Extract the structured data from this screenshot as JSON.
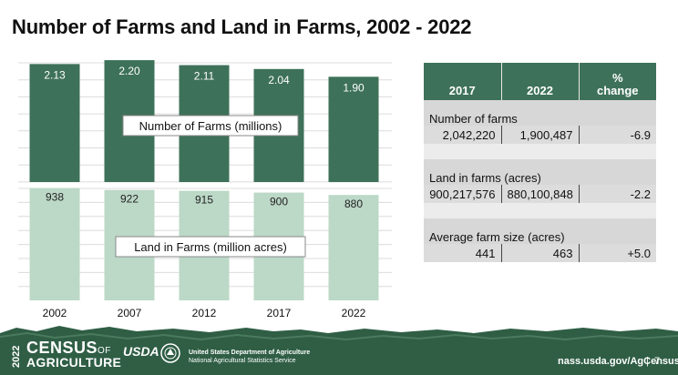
{
  "title": "Number of Farms and Land in Farms, 2002 - 2022",
  "chart_data": [
    {
      "type": "bar",
      "categories": [
        "2002",
        "2007",
        "2012",
        "2017",
        "2022"
      ],
      "values": [
        2.13,
        2.2,
        2.11,
        2.04,
        1.9
      ],
      "labels": [
        "2.13",
        "2.20",
        "2.11",
        "2.04",
        "1.90"
      ],
      "label": "Number of Farms (millions)",
      "color": "#3e7159"
    },
    {
      "type": "bar",
      "categories": [
        "2002",
        "2007",
        "2012",
        "2017",
        "2022"
      ],
      "values": [
        938,
        922,
        915,
        900,
        880
      ],
      "labels": [
        "938",
        "922",
        "915",
        "900",
        "880"
      ],
      "label": "Land in Farms (million acres)",
      "color": "#bcd8c7"
    }
  ],
  "table": {
    "headers": [
      "2017",
      "2022",
      "% change"
    ],
    "sections": [
      {
        "label": "Number of farms",
        "values": [
          "2,042,220",
          "1,900,487",
          "-6.9"
        ]
      },
      {
        "label": "Land in farms (acres)",
        "values": [
          "900,217,576",
          "880,100,848",
          "-2.2"
        ]
      },
      {
        "label": "Average farm size (acres)",
        "values": [
          "441",
          "463",
          "+5.0"
        ]
      }
    ]
  },
  "footer": {
    "census_year": "2022",
    "census_word": "CENSUS",
    "census_of": "OF",
    "census_agri": "AGRICULTURE",
    "usda": "USDA",
    "dept_line1": "United States Department of Agriculture",
    "dept_line2": "National Agricultural Statistics Service",
    "url": "nass.usda.gov/AgCensus",
    "separator": "|",
    "page": "7"
  },
  "colors": {
    "dark_green": "#3e7159",
    "light_green": "#bcd8c7",
    "footer_green": "#2f5e45"
  }
}
